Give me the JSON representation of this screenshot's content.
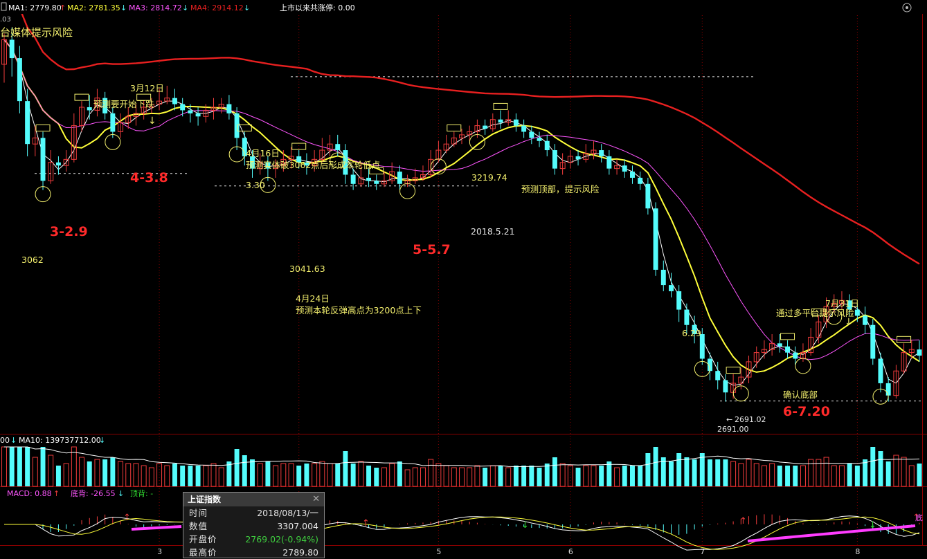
{
  "colors": {
    "bg": "#000000",
    "up": "#f03c3c",
    "down": "#54fcfc",
    "ma1": "#ffffff",
    "ma2": "#ffff3a",
    "ma3": "#ff56ff",
    "ma4": "#e82020",
    "grid": "#8a0000",
    "annot": "#f4f06e",
    "big": "#ff2a2a",
    "green": "#2fd62f"
  },
  "header": {
    "ma1": "MA1: 2779.80",
    "ma2": "MA2: 2781.35",
    "ma3": "MA3: 2814.72",
    "ma4": "MA4: 2914.12",
    "limit_up": "上市以来共涨停: 0.00",
    "left_fragment": ".03",
    "risk_text": "台媒体提示风险"
  },
  "annotations": {
    "a_3_12_date": "3月12日",
    "a_3_12_text": "预测要开始下跌",
    "a_4_16_date": "4月16日",
    "a_4_16_text": "预测实体破3062点后形成本轮低点",
    "a_3_30": "3.30",
    "a_3219": "3219.74",
    "a_top_text": "预测顶部，提示风险",
    "a_2018_5_21": "2018.5.21",
    "a_3062": "3062",
    "a_3041": "3041.63",
    "a_4_24_date": "4月24日",
    "a_4_24_text": "预测本轮反弹高点为3200点上下",
    "a_6_29": "6.29",
    "a_7_31_date": "7月31日",
    "a_multi": "通过多平台提示风险",
    "a_confirm": "确认底部",
    "a_2691": "2691.02",
    "a_clip": "2691.00",
    "big_3_29": "3-2.9",
    "big_4_38": "4-3.8",
    "big_5_57": "5-5.7",
    "big_6_720": "6-7.20"
  },
  "volume": {
    "ma_prefix": "00",
    "ma10": "MA10: 139737712.00"
  },
  "macd": {
    "macd": "MACD: 0.88",
    "divergence_bottom": "底背: -26.55",
    "divergence_top": "顶背: -",
    "right_fragment": "底"
  },
  "xaxis": {
    "months": [
      "3",
      "4",
      "5",
      "6",
      "7",
      "8"
    ]
  },
  "tooltip": {
    "title": "上证指数",
    "close": "✕",
    "rows": [
      {
        "k": "时间",
        "v": "2018/08/13/一"
      },
      {
        "k": "数值",
        "v": "3307.004"
      },
      {
        "k": "开盘价",
        "v": "2769.02(-0.94%)"
      },
      {
        "k": "最高价",
        "v": "2789.80"
      }
    ]
  },
  "chart_data": {
    "type": "candlestick",
    "title": "上证指数",
    "ylim": [
      2650,
      3320
    ],
    "y_axis_visible": false,
    "x_months": [
      "3",
      "4",
      "5",
      "6",
      "7",
      "8"
    ],
    "ma_lines": [
      {
        "name": "MA1",
        "last": 2779.8
      },
      {
        "name": "MA2",
        "last": 2781.35
      },
      {
        "name": "MA3",
        "last": 2814.72
      },
      {
        "name": "MA4",
        "last": 2914.12
      }
    ],
    "key_levels": [
      {
        "label": "3062",
        "value": 3062
      },
      {
        "label": "3041.63",
        "value": 3041.63
      },
      {
        "label": "3219.74",
        "value": 3219.74
      },
      {
        "label": "2691.02",
        "value": 2691.02
      }
    ],
    "candles": [
      [
        3240,
        3280,
        3290,
        3210
      ],
      [
        3280,
        3250,
        3300,
        3220
      ],
      [
        3250,
        3180,
        3270,
        3160
      ],
      [
        3180,
        3110,
        3200,
        3090
      ],
      [
        3110,
        3120,
        3140,
        3090
      ],
      [
        3120,
        3050,
        3130,
        3035
      ],
      [
        3050,
        3080,
        3100,
        3045
      ],
      [
        3080,
        3075,
        3090,
        3060
      ],
      [
        3075,
        3085,
        3100,
        3065
      ],
      [
        3085,
        3140,
        3160,
        3080
      ],
      [
        3140,
        3170,
        3180,
        3130
      ],
      [
        3170,
        3165,
        3190,
        3150
      ],
      [
        3165,
        3185,
        3200,
        3155
      ],
      [
        3185,
        3160,
        3195,
        3150
      ],
      [
        3160,
        3130,
        3170,
        3120
      ],
      [
        3130,
        3145,
        3160,
        3120
      ],
      [
        3145,
        3155,
        3170,
        3135
      ],
      [
        3155,
        3160,
        3175,
        3140
      ],
      [
        3160,
        3170,
        3180,
        3150
      ],
      [
        3170,
        3175,
        3185,
        3160
      ],
      [
        3175,
        3180,
        3200,
        3165
      ],
      [
        3180,
        3185,
        3205,
        3175
      ],
      [
        3185,
        3175,
        3200,
        3165
      ],
      [
        3175,
        3165,
        3185,
        3155
      ],
      [
        3165,
        3160,
        3175,
        3145
      ],
      [
        3160,
        3155,
        3170,
        3140
      ],
      [
        3155,
        3165,
        3175,
        3145
      ],
      [
        3165,
        3170,
        3185,
        3150
      ],
      [
        3170,
        3175,
        3185,
        3160
      ],
      [
        3175,
        3160,
        3190,
        3150
      ],
      [
        3160,
        3120,
        3170,
        3100
      ],
      [
        3120,
        3090,
        3130,
        3075
      ],
      [
        3090,
        3070,
        3100,
        3055
      ],
      [
        3070,
        3080,
        3095,
        3060
      ],
      [
        3080,
        3070,
        3090,
        3050
      ],
      [
        3070,
        3075,
        3085,
        3055
      ],
      [
        3075,
        3085,
        3100,
        3065
      ],
      [
        3085,
        3090,
        3105,
        3070
      ],
      [
        3090,
        3080,
        3100,
        3070
      ],
      [
        3080,
        3075,
        3095,
        3060
      ],
      [
        3075,
        3085,
        3100,
        3065
      ],
      [
        3085,
        3100,
        3120,
        3080
      ],
      [
        3100,
        3110,
        3125,
        3090
      ],
      [
        3110,
        3100,
        3125,
        3090
      ],
      [
        3100,
        3060,
        3110,
        3045
      ],
      [
        3060,
        3045,
        3070,
        3035
      ],
      [
        3045,
        3055,
        3080,
        3040
      ],
      [
        3055,
        3050,
        3070,
        3040
      ],
      [
        3050,
        3045,
        3060,
        3035
      ],
      [
        3045,
        3050,
        3065,
        3040
      ],
      [
        3050,
        3065,
        3080,
        3045
      ],
      [
        3065,
        3045,
        3075,
        3035
      ],
      [
        3045,
        3050,
        3060,
        3040
      ],
      [
        3050,
        3055,
        3070,
        3045
      ],
      [
        3055,
        3060,
        3075,
        3050
      ],
      [
        3060,
        3085,
        3100,
        3055
      ],
      [
        3085,
        3100,
        3115,
        3080
      ],
      [
        3100,
        3110,
        3125,
        3095
      ],
      [
        3110,
        3120,
        3130,
        3105
      ],
      [
        3120,
        3125,
        3135,
        3110
      ],
      [
        3125,
        3130,
        3140,
        3115
      ],
      [
        3130,
        3140,
        3150,
        3120
      ],
      [
        3140,
        3135,
        3150,
        3125
      ],
      [
        3135,
        3150,
        3160,
        3130
      ],
      [
        3150,
        3145,
        3165,
        3135
      ],
      [
        3145,
        3150,
        3165,
        3140
      ],
      [
        3150,
        3140,
        3160,
        3130
      ],
      [
        3140,
        3130,
        3150,
        3120
      ],
      [
        3130,
        3120,
        3140,
        3110
      ],
      [
        3120,
        3115,
        3130,
        3105
      ],
      [
        3115,
        3100,
        3125,
        3090
      ],
      [
        3100,
        3070,
        3110,
        3060
      ],
      [
        3070,
        3080,
        3095,
        3060
      ],
      [
        3080,
        3090,
        3100,
        3070
      ],
      [
        3090,
        3085,
        3100,
        3075
      ],
      [
        3085,
        3095,
        3110,
        3080
      ],
      [
        3095,
        3100,
        3115,
        3085
      ],
      [
        3100,
        3090,
        3110,
        3080
      ],
      [
        3090,
        3070,
        3100,
        3060
      ],
      [
        3070,
        3075,
        3085,
        3060
      ],
      [
        3075,
        3065,
        3085,
        3055
      ],
      [
        3065,
        3055,
        3075,
        3045
      ],
      [
        3055,
        3045,
        3065,
        3035
      ],
      [
        3045,
        3005,
        3055,
        2995
      ],
      [
        3005,
        2905,
        3015,
        2895
      ],
      [
        2905,
        2880,
        2920,
        2870
      ],
      [
        2880,
        2870,
        2900,
        2860
      ],
      [
        2870,
        2840,
        2880,
        2820
      ],
      [
        2840,
        2815,
        2850,
        2800
      ],
      [
        2815,
        2800,
        2830,
        2785
      ],
      [
        2800,
        2760,
        2810,
        2750
      ],
      [
        2760,
        2740,
        2770,
        2725
      ],
      [
        2740,
        2725,
        2755,
        2710
      ],
      [
        2725,
        2705,
        2735,
        2690
      ],
      [
        2705,
        2720,
        2735,
        2695
      ],
      [
        2720,
        2730,
        2745,
        2710
      ],
      [
        2730,
        2755,
        2765,
        2720
      ],
      [
        2755,
        2770,
        2780,
        2745
      ],
      [
        2770,
        2775,
        2790,
        2760
      ],
      [
        2775,
        2785,
        2800,
        2765
      ],
      [
        2785,
        2780,
        2800,
        2770
      ],
      [
        2780,
        2770,
        2790,
        2760
      ],
      [
        2770,
        2760,
        2780,
        2750
      ],
      [
        2760,
        2770,
        2785,
        2755
      ],
      [
        2770,
        2795,
        2810,
        2765
      ],
      [
        2795,
        2820,
        2830,
        2785
      ],
      [
        2820,
        2845,
        2860,
        2810
      ],
      [
        2845,
        2850,
        2865,
        2835
      ],
      [
        2850,
        2855,
        2870,
        2840
      ],
      [
        2855,
        2840,
        2865,
        2830
      ],
      [
        2840,
        2830,
        2850,
        2820
      ],
      [
        2830,
        2815,
        2845,
        2800
      ],
      [
        2815,
        2760,
        2825,
        2750
      ],
      [
        2760,
        2720,
        2770,
        2705
      ],
      [
        2720,
        2700,
        2730,
        2690
      ],
      [
        2700,
        2740,
        2750,
        2695
      ],
      [
        2740,
        2770,
        2785,
        2735
      ],
      [
        2770,
        2775,
        2790,
        2760
      ],
      [
        2775,
        2765,
        2790,
        2755
      ]
    ]
  }
}
